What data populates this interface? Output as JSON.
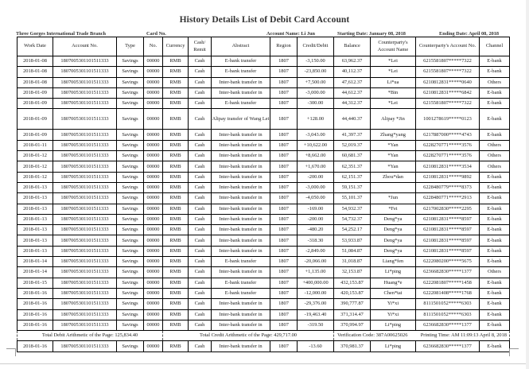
{
  "title": "History Details List of Debit Card Account",
  "meta": {
    "branch": "Three Gorges International Trade Branch",
    "card_no": "Card No.",
    "account_name": "Account Name: Li Jun",
    "starting_date": "Starting Date: January 08, 2018",
    "ending_date": "Ending Date: April 08, 2018"
  },
  "columns": [
    "Work Date",
    "Account No.",
    "Type",
    "No.",
    "Currency",
    "Cash/ Remit",
    "Abstract",
    "Region",
    "Credit/Debit",
    "Balance",
    "Counterparty's Account Name",
    "Counterparty's Account No.",
    "Channel"
  ],
  "rows": [
    [
      "2018-01-08",
      "1807005301101511333",
      "Savings",
      "00000",
      "RMB",
      "Cash",
      "E-bank transfer",
      "1807",
      "-3,150.00",
      "63,962.37",
      "*Lei",
      "6215581807*****7322",
      "E-bank"
    ],
    [
      "2018-01-08",
      "1807005301101511333",
      "Savings",
      "00000",
      "RMB",
      "Cash",
      "E-bank transfer",
      "1807",
      "-23,850.00",
      "40,112.37",
      "*Lei",
      "6215581807*****7322",
      "E-bank"
    ],
    [
      "2018-01-08",
      "1807005301101511333",
      "Savings",
      "00000",
      "RMB",
      "Cash",
      "Inter-bank transfer in",
      "1807",
      "+7,500.00",
      "47,612.37",
      "Li*ua",
      "6210812831*****0640",
      "Others"
    ],
    [
      "2018-01-09",
      "1807005301101511333",
      "Savings",
      "00000",
      "RMB",
      "Cash",
      "Inter-bank transfer in",
      "1807",
      "-3,000.00",
      "44,612.37",
      "*Bin",
      "6210812831*****6842",
      "E-bank"
    ],
    [
      "2018-01-09",
      "1807005301101511333",
      "Savings",
      "00000",
      "RMB",
      "Cash",
      "E-bank transfer",
      "1807",
      "-300.00",
      "44,312.37",
      "*Lei",
      "6215581807*****7322",
      "E-bank"
    ],
    [
      "2018-01-09",
      "1807005301101511333",
      "Savings",
      "00000",
      "RMB",
      "Cash",
      "Alipay transfer of Wang Lei",
      "1807",
      "+128.00",
      "44,440.37",
      "Alipay *Jin",
      "1001278619*****0123",
      "E-bank"
    ],
    [
      "2018-01-09",
      "1807005301101511333",
      "Savings",
      "00000",
      "RMB",
      "Cash",
      "Inter-bank transfer in",
      "1807",
      "-3,043.00",
      "41,397.37",
      "Zhang*yang",
      "6217887000*****4743",
      "E-bank"
    ],
    [
      "2018-01-11",
      "1807005301101511333",
      "Savings",
      "00000",
      "RMB",
      "Cash",
      "Inter-bank transfer in",
      "1807",
      "+10,622.00",
      "52,019.37",
      "*Yan",
      "6228270771*****3576",
      "Others"
    ],
    [
      "2018-01-12",
      "1807005301101511333",
      "Savings",
      "00000",
      "RMB",
      "Cash",
      "Inter-bank transfer in",
      "1807",
      "+8,662.00",
      "60,681.37",
      "*Yan",
      "6228270771*****3576",
      "Others"
    ],
    [
      "2018-01-12",
      "1807005301101511333",
      "Savings",
      "00000",
      "RMB",
      "Cash",
      "Inter-bank transfer in",
      "1807",
      "+1,670.00",
      "62,351.37",
      "*Yan",
      "6210812831*****3534",
      "Others"
    ],
    [
      "2018-01-12",
      "1807005301101511333",
      "Savings",
      "00000",
      "RMB",
      "Cash",
      "Inter-bank transfer in",
      "1807",
      "-200.00",
      "62,151.37",
      "Zhou*dan",
      "6210812831*****9892",
      "E-bank"
    ],
    [
      "2018-01-13",
      "1807005301101511333",
      "Savings",
      "00000",
      "RMB",
      "Cash",
      "Inter-bank transfer in",
      "1807",
      "-3,000.00",
      "59,151.37",
      "",
      "6228480779*****8373",
      "E-bank"
    ],
    [
      "2018-01-13",
      "1807005301101511333",
      "Savings",
      "00000",
      "RMB",
      "Cash",
      "Inter-bank transfer in",
      "1807",
      "-4,050.00",
      "55,101.37",
      "*Jun",
      "6228480771*****2913",
      "E-bank"
    ],
    [
      "2018-01-13",
      "1807005301101511333",
      "Savings",
      "00000",
      "RMB",
      "Cash",
      "Inter-bank transfer in",
      "1807",
      "-169.00",
      "54,932.37",
      "*Fei",
      "6217002830*****2295",
      "E-bank"
    ],
    [
      "2018-01-13",
      "1807005301101511333",
      "Savings",
      "00000",
      "RMB",
      "Cash",
      "Inter-bank transfer in",
      "1807",
      "-200.00",
      "54,732.37",
      "Deng*ya",
      "6210812831*****8597",
      "E-bank"
    ],
    [
      "2018-01-13",
      "1807005301101511333",
      "Savings",
      "00000",
      "RMB",
      "Cash",
      "Inter-bank transfer in",
      "1807",
      "-480.20",
      "54,252.17",
      "Deng*ya",
      "6210812831*****8597",
      "E-bank"
    ],
    [
      "2018-01-13",
      "1807005301101511333",
      "Savings",
      "00000",
      "RMB",
      "Cash",
      "Inter-bank transfer in",
      "1807",
      "-318.30",
      "53,933.87",
      "Deng*ya",
      "6210812831*****8597",
      "E-bank"
    ],
    [
      "2018-01-13",
      "1807005301101511333",
      "Savings",
      "00000",
      "RMB",
      "Cash",
      "Inter-bank transfer in",
      "1807",
      "-2,849.00",
      "51,084.87",
      "Deng*ya",
      "6210812831*****8597",
      "E-bank"
    ],
    [
      "2018-01-14",
      "1807005301101511333",
      "Savings",
      "00000",
      "RMB",
      "Cash",
      "E-bank transfer",
      "1807",
      "-20,066.00",
      "31,018.87",
      "Liang*fen",
      "6222080200*****5675",
      "E-bank"
    ],
    [
      "2018-01-14",
      "1807005301101511333",
      "Savings",
      "00000",
      "RMB",
      "Cash",
      "Inter-bank transfer in",
      "1807",
      "+1,135.00",
      "32,153.87",
      "Li*ping",
      "6236682830*****1377",
      "Others"
    ],
    [
      "2018-01-15",
      "1807005301101511333",
      "Savings",
      "00000",
      "RMB",
      "Cash",
      "E-bank transfer",
      "1807",
      "+400,000.00",
      "432,153.87",
      "Huang*e",
      "6222081807*****1458",
      "E-bank"
    ],
    [
      "2018-01-16",
      "1807005301101511333",
      "Savings",
      "00000",
      "RMB",
      "Cash",
      "E-bank transfer",
      "1807",
      "-12,000.00",
      "420,153.87",
      "Chen*tai",
      "6222081408*****1768",
      "E-bank"
    ],
    [
      "2018-01-16",
      "1807005301101511333",
      "Savings",
      "00000",
      "RMB",
      "Cash",
      "Inter-bank transfer in",
      "1807",
      "-29,376.00",
      "390,777.87",
      "Yi*xi",
      "8111501052*****6303",
      "E-bank"
    ],
    [
      "2018-01-16",
      "1807005301101511333",
      "Savings",
      "00000",
      "RMB",
      "Cash",
      "Inter-bank transfer in",
      "1807",
      "-19,463.40",
      "371,314.47",
      "Yi*xi",
      "8111501052*****6303",
      "E-bank"
    ],
    [
      "2018-01-16",
      "1807005301101511333",
      "Savings",
      "00000",
      "RMB",
      "Cash",
      "Inter-bank transfer in",
      "1807",
      "-319.50",
      "370,994.97",
      "Li*ping",
      "6236682830*****1377",
      "E-bank"
    ]
  ],
  "summary": {
    "total_debit": "Total Debit Arithmetic of the Page: 125,834.40",
    "total_credit": "Total Credit Arithmetic of the Page: 429,717.00",
    "verification": "Verification Code: 387A00625026",
    "printing_time": "Printing Time: AM 11:09:13 April 8, 2018"
  },
  "last_row": [
    "2018-01-16",
    "1807005301101511333",
    "Savings",
    "00000",
    "RMB",
    "Cash",
    "Inter-bank transfer in",
    "1807",
    "-13.60",
    "370,981.37",
    "Li*ping",
    "6236682830*****1377",
    "E-bank"
  ]
}
